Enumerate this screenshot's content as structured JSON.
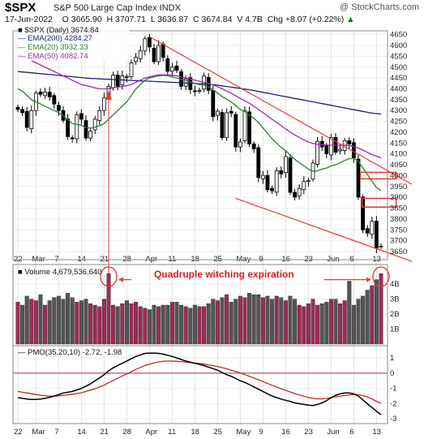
{
  "header": {
    "symbol": "$SPX",
    "description": "S&P 500 Large Cap Index  INDX",
    "watermark": "@ StockCharts.com",
    "date": "17-Jun-2022",
    "open": "O 3665.90",
    "high": "H 3707.71",
    "low": "L 3636.87",
    "close": "C 3674.84",
    "volume": "V 4.7B",
    "change": "Chg +8.07 (+0.22%)",
    "change_marker": "▲"
  },
  "colors": {
    "ema200": "#1a237e",
    "ema20": "#2e7d32",
    "ema50": "#9c27b0",
    "trendline": "#e53935",
    "up_volume": "#9e2b58",
    "down_volume": "#555555",
    "annotation": "#d42020"
  },
  "legend": {
    "price": "■ $SPX (Daily) 3674.84",
    "ema200": "— EMA(200) 4284.27",
    "ema20": "— EMA(20) 3932.33",
    "ema50": "— EMA(50) 4082.74"
  },
  "volume_label": "■ Volume 4,679,536,640",
  "annotation": "Quadruple witching expiration",
  "pmo_label": "— PMO(35,20,10) -2.72, -1.98",
  "chart_data": [
    {
      "type": "candlestick",
      "title": "$SPX S&P 500 Large Cap Index INDX",
      "x_labels": [
        "22",
        "Mar",
        "7",
        "14",
        "21",
        "28",
        "Apr",
        "11",
        "18",
        "25",
        "May",
        "9",
        "16",
        "23",
        "Jun",
        "6",
        "13"
      ],
      "y_ticks": [
        3650,
        3700,
        3750,
        3800,
        3850,
        3900,
        3950,
        4000,
        4050,
        4100,
        4150,
        4200,
        4250,
        4300,
        4350,
        4400,
        4450,
        4500,
        4550,
        4600,
        4650
      ],
      "ylim": [
        3620,
        4660
      ],
      "close": [
        4305,
        4290,
        4222,
        4300,
        4380,
        4375,
        4385,
        4363,
        4330,
        4300,
        4255,
        4180,
        4170,
        4280,
        4260,
        4173,
        4205,
        4260,
        4300,
        4358,
        4412,
        4463,
        4412,
        4460,
        4456,
        4520,
        4545,
        4575,
        4631,
        4593,
        4525,
        4600,
        4545,
        4481,
        4500,
        4485,
        4412,
        4446,
        4397,
        4390,
        4393,
        4459,
        4393,
        4272,
        4297,
        4175,
        4290,
        4288,
        4132,
        4155,
        4300,
        4146,
        4123,
        3991,
        4001,
        3935,
        3930,
        4023,
        4008,
        4088,
        3923,
        3901,
        3941,
        3973,
        3978,
        4058,
        4158,
        4132,
        4101,
        4176,
        4108,
        4121,
        4161,
        4146,
        4082,
        3901,
        3750,
        3735,
        3790,
        3666,
        3675
      ],
      "ema200": [
        4480,
        4478,
        4476,
        4474,
        4472,
        4470,
        4468,
        4466,
        4464,
        4462,
        4460,
        4458,
        4456,
        4454,
        4452,
        4450,
        4448,
        4447,
        4446,
        4445,
        4444,
        4443,
        4442,
        4441,
        4440,
        4439,
        4438,
        4437,
        4436,
        4435,
        4434,
        4433,
        4432,
        4431,
        4430,
        4429,
        4428,
        4427,
        4426,
        4425,
        4424,
        4423,
        4421,
        4419,
        4417,
        4414,
        4411,
        4408,
        4405,
        4402,
        4399,
        4396,
        4392,
        4388,
        4384,
        4380,
        4376,
        4372,
        4368,
        4364,
        4360,
        4356,
        4352,
        4348,
        4344,
        4340,
        4336,
        4332,
        4328,
        4324,
        4320,
        4316,
        4312,
        4308,
        4304,
        4300,
        4296,
        4292,
        4288,
        4286,
        4284
      ],
      "ema20": [
        4400,
        4390,
        4370,
        4350,
        4340,
        4330,
        4320,
        4310,
        4300,
        4290,
        4275,
        4258,
        4240,
        4236,
        4232,
        4222,
        4219,
        4223,
        4230,
        4240,
        4260,
        4280,
        4300,
        4320,
        4340,
        4370,
        4400,
        4420,
        4440,
        4450,
        4455,
        4460,
        4462,
        4460,
        4455,
        4450,
        4443,
        4438,
        4432,
        4425,
        4420,
        4418,
        4410,
        4395,
        4380,
        4365,
        4352,
        4340,
        4323,
        4305,
        4295,
        4280,
        4265,
        4245,
        4220,
        4195,
        4170,
        4150,
        4130,
        4115,
        4095,
        4075,
        4060,
        4045,
        4030,
        4020,
        4022,
        4030,
        4035,
        4045,
        4050,
        4060,
        4070,
        4078,
        4080,
        4065,
        4035,
        4005,
        3975,
        3945,
        3932
      ],
      "ema50": [
        4560,
        4550,
        4540,
        4530,
        4520,
        4510,
        4500,
        4490,
        4480,
        4470,
        4460,
        4450,
        4440,
        4430,
        4420,
        4415,
        4410,
        4405,
        4400,
        4400,
        4400,
        4405,
        4408,
        4410,
        4415,
        4420,
        4430,
        4440,
        4450,
        4455,
        4460,
        4465,
        4465,
        4465,
        4463,
        4460,
        4455,
        4450,
        4445,
        4440,
        4435,
        4430,
        4425,
        4418,
        4410,
        4400,
        4390,
        4380,
        4368,
        4356,
        4345,
        4333,
        4320,
        4305,
        4290,
        4275,
        4260,
        4245,
        4230,
        4215,
        4200,
        4188,
        4176,
        4165,
        4155,
        4148,
        4145,
        4143,
        4141,
        4140,
        4140,
        4140,
        4140,
        4139,
        4135,
        4127,
        4118,
        4107,
        4097,
        4090,
        4082
      ],
      "series": [
        {
          "name": "$SPX (Daily)"
        },
        {
          "name": "EMA(200)"
        },
        {
          "name": "EMA(20)"
        },
        {
          "name": "EMA(50)"
        }
      ]
    },
    {
      "type": "bar",
      "title": "Volume",
      "y_ticks": [
        "1B",
        "2B",
        "3B",
        "4B"
      ],
      "ylim": [
        0,
        5.2
      ],
      "values": [
        2.8,
        2.6,
        3.2,
        3.0,
        2.9,
        3.3,
        2.6,
        2.9,
        3.1,
        3.2,
        3.0,
        3.4,
        3.1,
        2.8,
        2.9,
        3.0,
        2.7,
        2.6,
        2.5,
        3.0,
        4.7,
        2.6,
        2.5,
        2.7,
        2.9,
        2.7,
        2.8,
        2.5,
        2.4,
        2.3,
        2.6,
        2.5,
        2.6,
        2.6,
        2.8,
        2.8,
        2.6,
        2.5,
        2.4,
        2.6,
        2.5,
        2.5,
        2.7,
        3.0,
        2.9,
        3.1,
        3.3,
        2.8,
        3.0,
        3.2,
        3.1,
        3.4,
        3.3,
        3.3,
        3.1,
        3.2,
        3.0,
        3.2,
        3.1,
        2.9,
        3.2,
        3.0,
        2.6,
        2.5,
        2.7,
        3.0,
        2.6,
        2.7,
        2.8,
        3.0,
        3.0,
        2.7,
        2.9,
        4.2,
        2.6,
        3.0,
        3.2,
        3.6,
        3.9,
        4.3,
        4.7
      ]
    },
    {
      "type": "line",
      "title": "PMO(35,20,10)",
      "y_ticks": [
        1,
        0,
        -1,
        -2,
        -3
      ],
      "ylim": [
        -3.2,
        1.7
      ],
      "series": [
        {
          "name": "PMO",
          "values": [
            -1.6,
            -1.65,
            -1.7,
            -1.72,
            -1.72,
            -1.7,
            -1.65,
            -1.58,
            -1.5,
            -1.4,
            -1.3,
            -1.25,
            -1.2,
            -1.1,
            -1.0,
            -0.85,
            -0.7,
            -0.5,
            -0.3,
            -0.1,
            0.15,
            0.35,
            0.5,
            0.65,
            0.8,
            0.95,
            1.1,
            1.2,
            1.3,
            1.32,
            1.32,
            1.3,
            1.25,
            1.18,
            1.1,
            1.0,
            0.9,
            0.8,
            0.72,
            0.65,
            0.58,
            0.5,
            0.4,
            0.3,
            0.2,
            0.05,
            -0.1,
            -0.2,
            -0.35,
            -0.5,
            -0.6,
            -0.75,
            -0.9,
            -1.05,
            -1.2,
            -1.35,
            -1.5,
            -1.6,
            -1.7,
            -1.78,
            -1.85,
            -1.95,
            -2.0,
            -2.05,
            -2.1,
            -2.12,
            -2.05,
            -1.95,
            -1.8,
            -1.6,
            -1.45,
            -1.35,
            -1.3,
            -1.3,
            -1.35,
            -1.5,
            -1.75,
            -2.0,
            -2.25,
            -2.5,
            -2.72
          ]
        },
        {
          "name": "Signal",
          "values": [
            -1.2,
            -1.25,
            -1.3,
            -1.35,
            -1.4,
            -1.45,
            -1.48,
            -1.5,
            -1.5,
            -1.48,
            -1.45,
            -1.42,
            -1.38,
            -1.33,
            -1.28,
            -1.2,
            -1.12,
            -1.02,
            -0.9,
            -0.78,
            -0.62,
            -0.48,
            -0.33,
            -0.18,
            -0.05,
            0.1,
            0.25,
            0.38,
            0.5,
            0.6,
            0.68,
            0.74,
            0.78,
            0.8,
            0.8,
            0.78,
            0.76,
            0.73,
            0.7,
            0.67,
            0.64,
            0.6,
            0.55,
            0.5,
            0.44,
            0.37,
            0.29,
            0.2,
            0.11,
            0.01,
            -0.09,
            -0.2,
            -0.31,
            -0.43,
            -0.55,
            -0.67,
            -0.79,
            -0.91,
            -1.02,
            -1.13,
            -1.23,
            -1.34,
            -1.43,
            -1.51,
            -1.59,
            -1.65,
            -1.68,
            -1.68,
            -1.65,
            -1.6,
            -1.55,
            -1.5,
            -1.46,
            -1.42,
            -1.4,
            -1.41,
            -1.47,
            -1.56,
            -1.69,
            -1.85,
            -1.98
          ]
        }
      ]
    }
  ]
}
